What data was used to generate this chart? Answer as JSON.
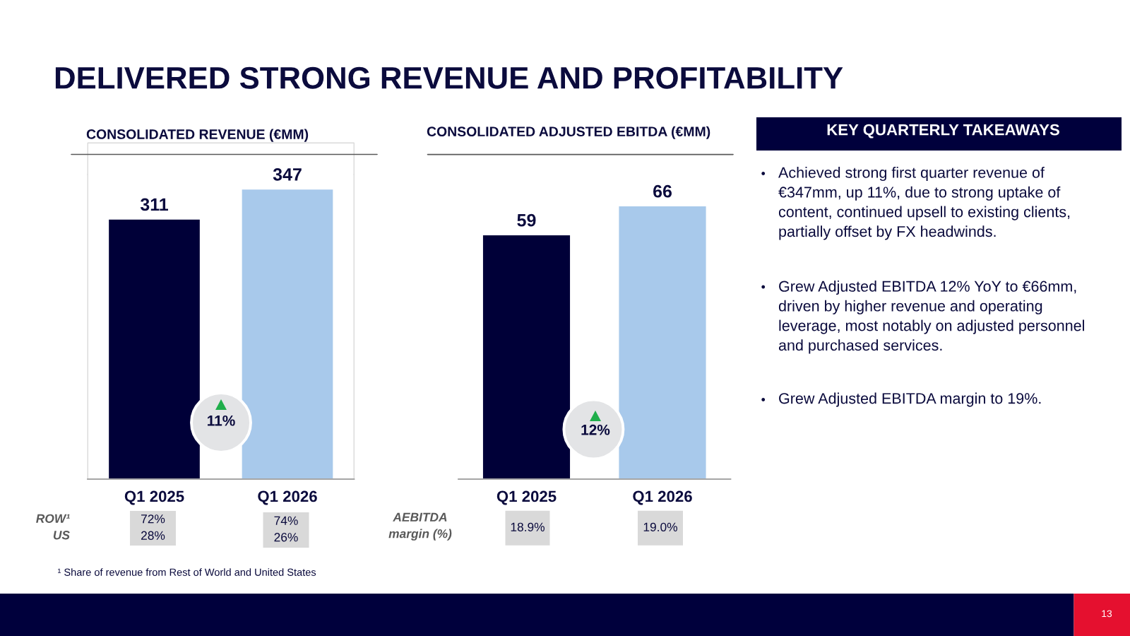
{
  "chart_data": [
    {
      "type": "bar",
      "title": "CONSOLIDATED REVENUE (€MM)",
      "categories": [
        "Q1 2025",
        "Q1 2026"
      ],
      "values": [
        311,
        347
      ],
      "colors": [
        "#000038",
        "#a8c9eb"
      ],
      "data_labels": true,
      "tick_labels": "x",
      "annotations": [
        "DELIVERED STRONG REVENUE AND PROFITABILITY",
        "11%",
        "ROW¹\nUS",
        "72%\n28%",
        "74%\n26%",
        "¹ Share of revenue from Rest of World and United States"
      ]
    },
    {
      "type": "bar",
      "title": "CONSOLIDATED ADJUSTED EBITDA (€MM)",
      "categories": [
        "Q1 2025",
        "Q1 2026"
      ],
      "values": [
        59,
        66
      ],
      "colors": [
        "#000038",
        "#a8c9eb"
      ],
      "data_labels": true,
      "tick_labels": "x",
      "annotations": [
        "12%",
        "AEBITDA\nmargin (%)",
        "18.9%",
        "19.0%"
      ]
    },
    {
      "type": "other",
      "title": "KEY QUARTERLY TAKEAWAYS",
      "annotations": [
        "Achieved strong first quarter revenue of\n€347mm, up 11%, due to strong uptake of\ncontent, continued upsell to existing clients,\npartially offset by FX headwinds.",
        "Grew Adjusted EBITDA 12% YoY to €66mm,\ndriven by higher revenue and operating\nleverage, most notably on adjusted personnel\nand purchased services.",
        "Grew Adjusted EBITDA margin to 19%.",
        "13"
      ]
    }
  ]
}
